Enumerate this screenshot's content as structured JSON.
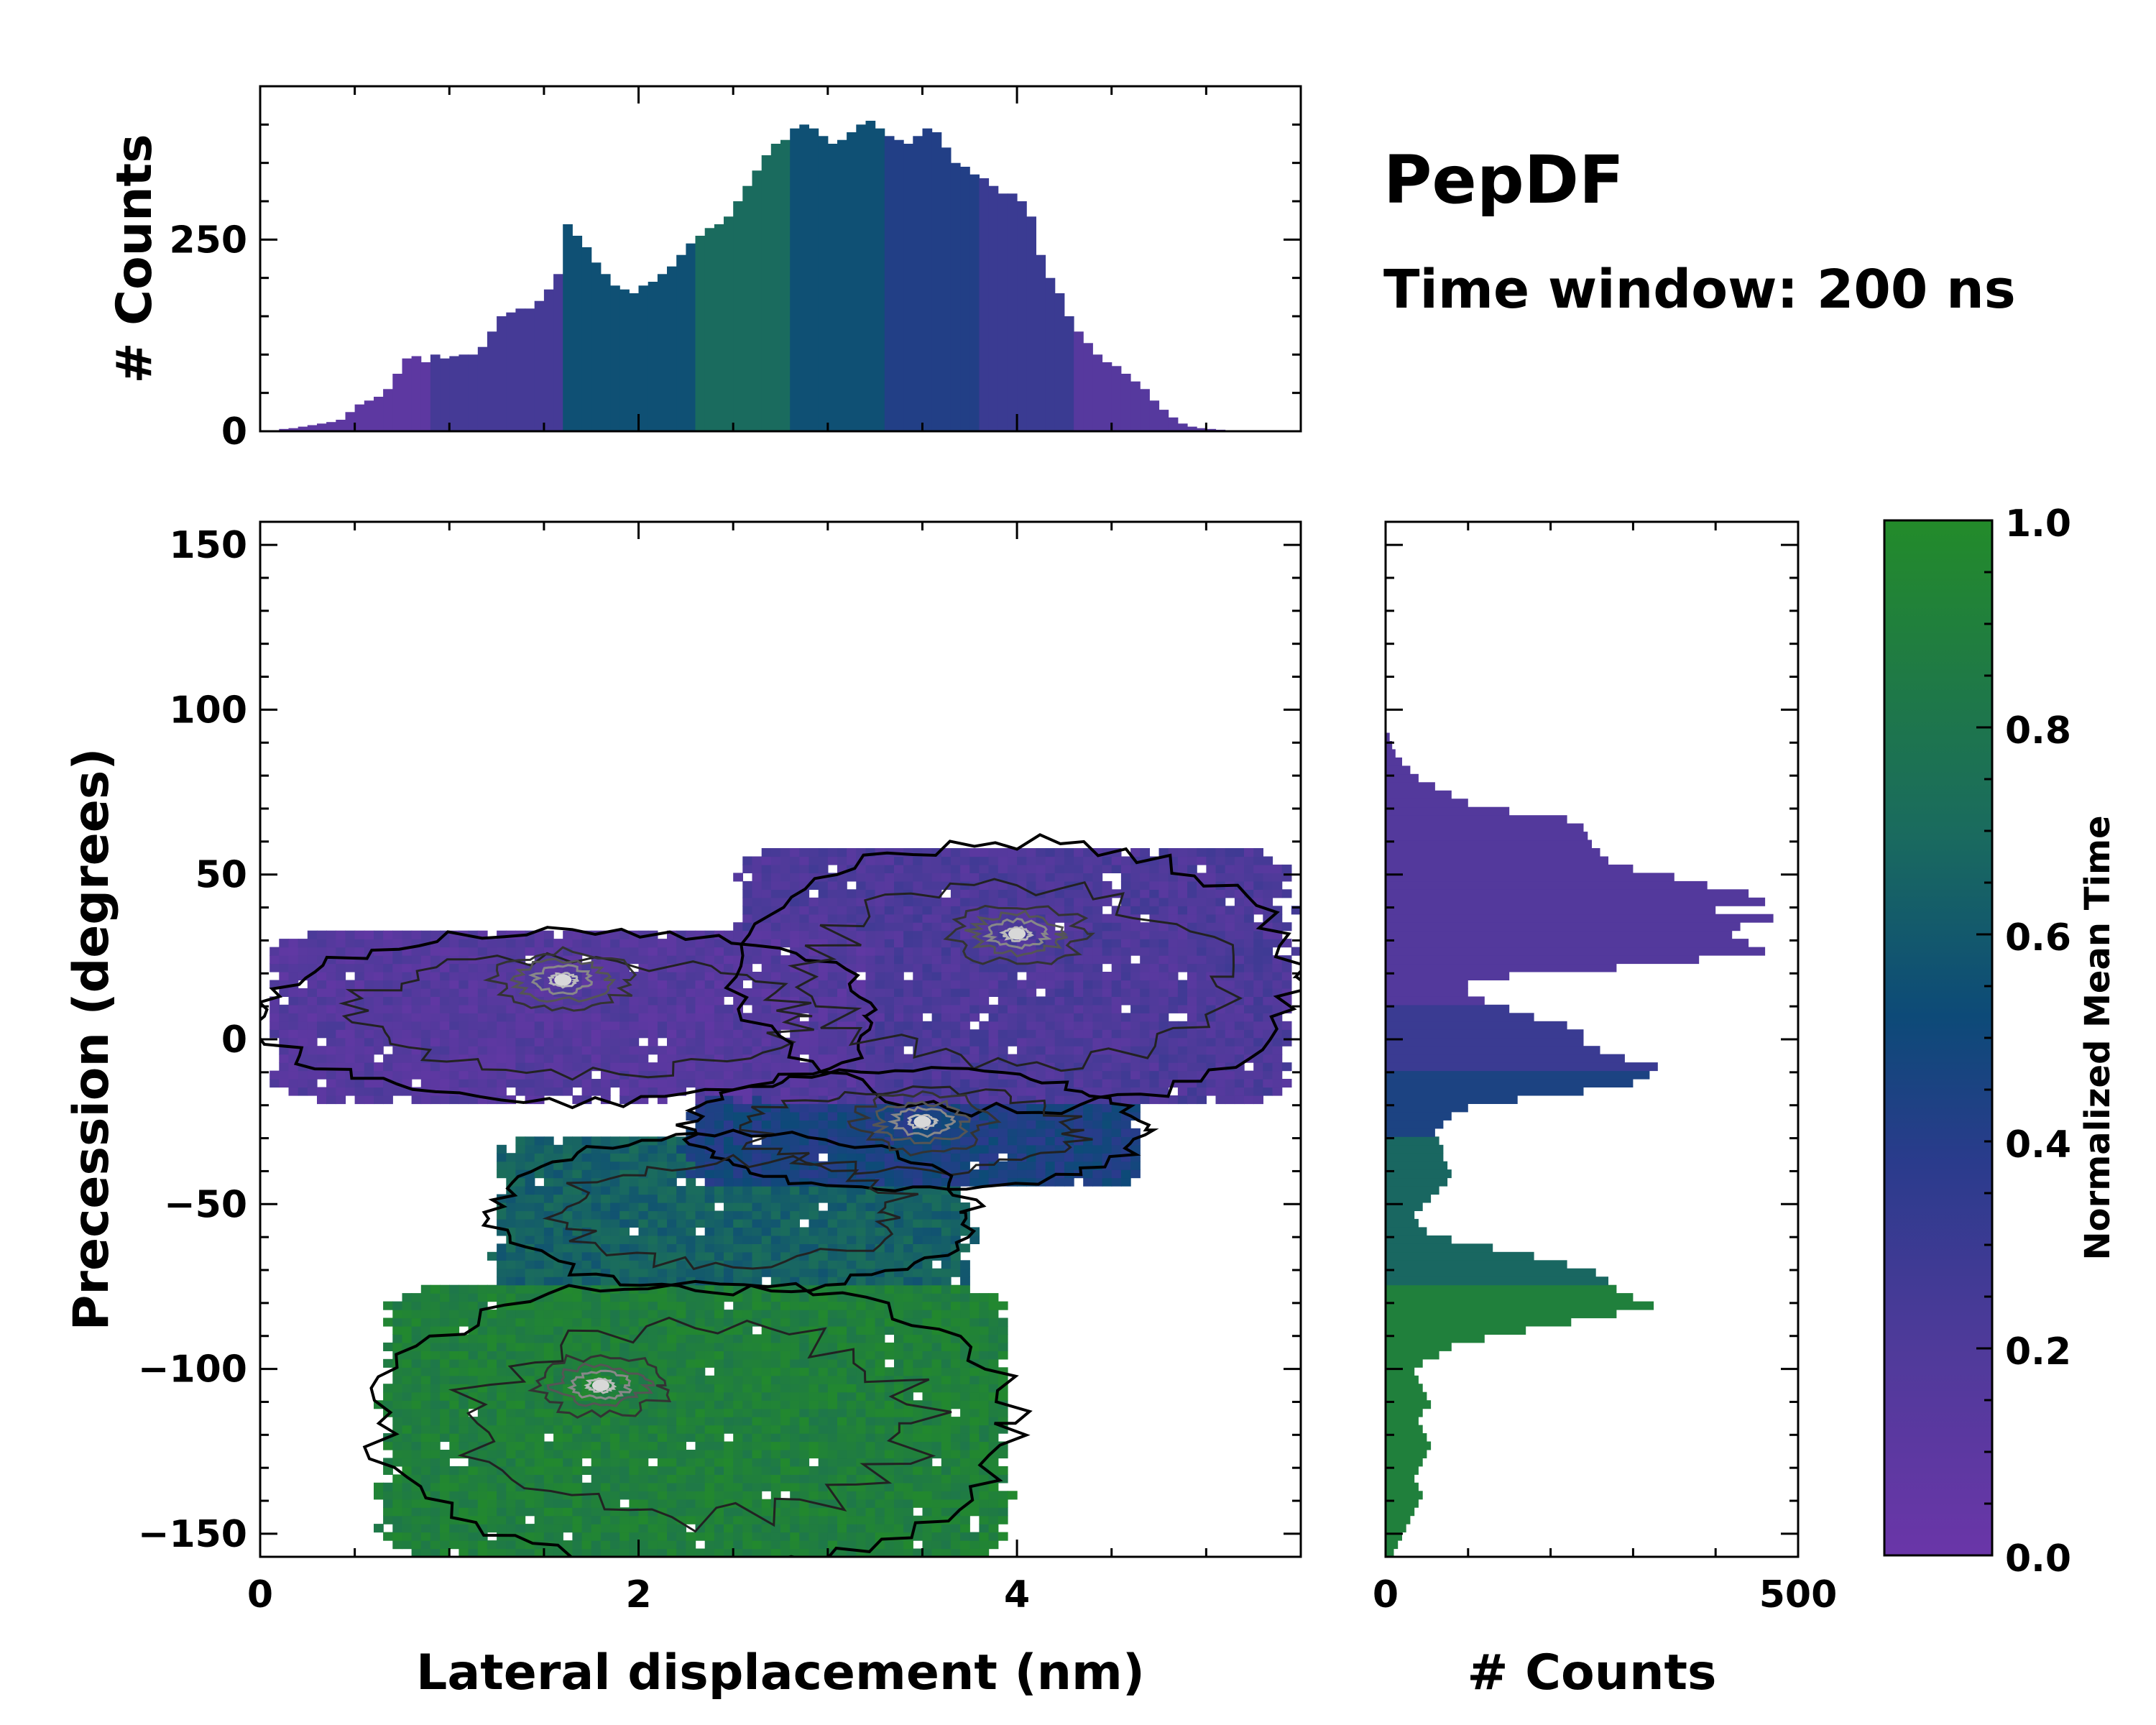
{
  "figure": {
    "title": "PepDF",
    "subtitle": "Time window: 200 ns"
  },
  "colors": {
    "purple": "#6a36a8",
    "blue": "#2a3b8c",
    "navy": "#0d4a78",
    "teal": "#1a6b5e",
    "green": "#238b2a",
    "background": "#ffffff",
    "axis": "#000000"
  },
  "chart_data": [
    {
      "id": "top-histogram",
      "type": "bar",
      "title": "",
      "xlabel": "",
      "ylabel": "# Counts",
      "xlim": [
        0,
        5.5
      ],
      "ylim": [
        0,
        450
      ],
      "xticks": [],
      "yticks": [
        0,
        250
      ],
      "ytick_labels": [
        "0",
        "250"
      ],
      "bin_width": 0.05,
      "x_start": 0.1,
      "values": [
        3,
        4,
        6,
        8,
        10,
        12,
        15,
        25,
        35,
        40,
        45,
        55,
        75,
        95,
        98,
        90,
        100,
        95,
        98,
        100,
        100,
        110,
        130,
        150,
        155,
        160,
        160,
        170,
        185,
        205,
        270,
        255,
        240,
        220,
        205,
        190,
        185,
        180,
        190,
        195,
        205,
        215,
        230,
        245,
        255,
        265,
        270,
        280,
        300,
        320,
        340,
        360,
        375,
        380,
        395,
        400,
        395,
        385,
        375,
        380,
        390,
        400,
        405,
        395,
        385,
        380,
        375,
        385,
        395,
        390,
        370,
        350,
        345,
        335,
        330,
        320,
        310,
        310,
        300,
        280,
        230,
        200,
        180,
        150,
        130,
        115,
        100,
        90,
        85,
        75,
        65,
        55,
        40,
        28,
        18,
        10,
        6,
        4,
        3,
        2,
        1
      ],
      "colorscale_note": "bar colors follow Normalized Mean Time"
    },
    {
      "id": "main-heatmap",
      "type": "heatmap",
      "title": "",
      "xlabel": "Lateral displacement (nm)",
      "ylabel": "Precession (degrees)",
      "xlim": [
        0,
        5.5
      ],
      "ylim": [
        -157,
        157
      ],
      "xticks": [
        0,
        2,
        4
      ],
      "xtick_labels": [
        "0",
        "2",
        "4"
      ],
      "yticks": [
        150,
        100,
        50,
        0,
        -50,
        -100,
        -150
      ],
      "ytick_labels": [
        "150",
        "100",
        "50",
        "0",
        "−50",
        "−100",
        "−150"
      ],
      "regions": [
        {
          "name": "upper-left lobe",
          "x": [
            0.1,
            3.2
          ],
          "y": [
            -18,
            32
          ],
          "mean_time": 0.15
        },
        {
          "name": "upper-right lobe",
          "x": [
            2.6,
            5.4
          ],
          "y": [
            -20,
            58
          ],
          "mean_time": 0.2
        },
        {
          "name": "central connector",
          "x": [
            2.3,
            4.6
          ],
          "y": [
            -45,
            -10
          ],
          "mean_time": 0.45
        },
        {
          "name": "middle band",
          "x": [
            1.3,
            3.7
          ],
          "y": [
            -75,
            -30
          ],
          "mean_time": 0.65
        },
        {
          "name": "lower lobe",
          "x": [
            0.7,
            3.9
          ],
          "y": [
            -158,
            -75
          ],
          "mean_time": 0.9
        }
      ],
      "density_peaks": [
        {
          "x": 1.6,
          "y": 18
        },
        {
          "x": 4.0,
          "y": 32
        },
        {
          "x": 3.5,
          "y": -25
        },
        {
          "x": 1.8,
          "y": -105
        }
      ]
    },
    {
      "id": "right-histogram",
      "type": "bar",
      "orientation": "horizontal",
      "title": "",
      "xlabel": "# Counts",
      "ylabel": "",
      "xlim": [
        0,
        500
      ],
      "ylim": [
        -157,
        157
      ],
      "xticks": [
        0,
        500
      ],
      "xtick_labels": [
        "0",
        "500"
      ],
      "yticks": [],
      "bin_width": 2.5,
      "y_start": -157,
      "values": [
        10,
        15,
        20,
        25,
        30,
        35,
        40,
        45,
        40,
        35,
        40,
        45,
        50,
        55,
        50,
        45,
        40,
        45,
        55,
        50,
        45,
        40,
        35,
        45,
        65,
        80,
        120,
        170,
        225,
        280,
        325,
        300,
        280,
        270,
        255,
        220,
        180,
        130,
        80,
        50,
        40,
        35,
        45,
        55,
        65,
        75,
        80,
        75,
        70,
        70,
        65,
        60,
        70,
        80,
        100,
        160,
        240,
        300,
        320,
        330,
        290,
        260,
        240,
        240,
        220,
        180,
        150,
        120,
        100,
        100,
        150,
        280,
        380,
        460,
        440,
        420,
        430,
        470,
        400,
        460,
        440,
        390,
        350,
        300,
        270,
        260,
        250,
        245,
        240,
        220,
        150,
        100,
        80,
        60,
        40,
        30,
        20,
        12,
        8,
        5
      ],
      "colorscale_note": "bar colors follow Normalized Mean Time"
    },
    {
      "id": "colorbar",
      "type": "heatmap",
      "title": "",
      "ylabel": "Normalized Mean Time",
      "ylim": [
        0,
        1
      ],
      "yticks": [
        0.0,
        0.2,
        0.4,
        0.6,
        0.8,
        1.0
      ],
      "ytick_labels": [
        "0.0",
        "0.2",
        "0.4",
        "0.6",
        "0.8",
        "1.0"
      ],
      "colorscale": [
        "#6a36a8",
        "#4f3a9a",
        "#2a3b8c",
        "#0d4a78",
        "#1a6b5e",
        "#1f7a45",
        "#238b2a"
      ]
    }
  ]
}
